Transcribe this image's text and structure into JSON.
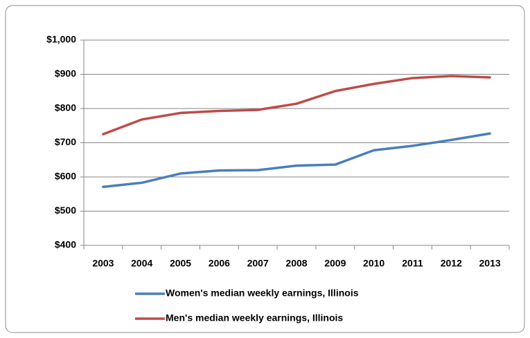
{
  "chart_data": {
    "type": "line",
    "categories": [
      "2003",
      "2004",
      "2005",
      "2006",
      "2007",
      "2008",
      "2009",
      "2010",
      "2011",
      "2012",
      "2013"
    ],
    "series": [
      {
        "name": "Women's median weekly earnings, Illinois",
        "color": "#4a7ebb",
        "values": [
          571,
          583,
          610,
          619,
          620,
          633,
          636,
          678,
          691,
          708,
          727
        ]
      },
      {
        "name": "Men's median weekly earnings, Illinois",
        "color": "#be4b48",
        "values": [
          725,
          768,
          787,
          793,
          796,
          814,
          851,
          872,
          889,
          895,
          891
        ]
      }
    ],
    "ylim": [
      400,
      1000
    ],
    "yticks": [
      {
        "value": 400,
        "label": "$400"
      },
      {
        "value": 500,
        "label": "$500"
      },
      {
        "value": 600,
        "label": "$600"
      },
      {
        "value": 700,
        "label": "$700"
      },
      {
        "value": 800,
        "label": "$800"
      },
      {
        "value": 900,
        "label": "$900"
      },
      {
        "value": 1000,
        "label": "$1,000"
      }
    ],
    "grid": true,
    "legend": "bottom"
  }
}
